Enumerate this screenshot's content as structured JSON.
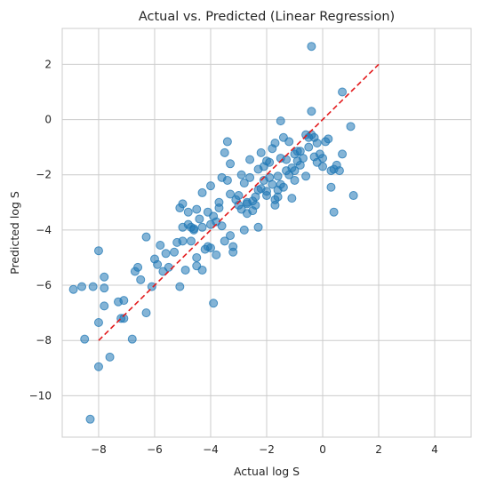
{
  "chart_data": {
    "type": "scatter",
    "title": "Actual vs. Predicted (Linear Regression)",
    "xlabel": "Actual log S",
    "ylabel": "Predicted log S",
    "xlim": [
      -9.3,
      5.3
    ],
    "ylim": [
      -11.5,
      3.3
    ],
    "xticks": [
      -8,
      -6,
      -4,
      -2,
      0,
      2,
      4
    ],
    "yticks": [
      -10,
      -8,
      -6,
      -4,
      -2,
      0,
      2
    ],
    "xtick_labels": [
      "−8",
      "−6",
      "−4",
      "−2",
      "0",
      "2",
      "4"
    ],
    "ytick_labels": [
      "−10",
      "−8",
      "−6",
      "−4",
      "−2",
      "0",
      "2"
    ],
    "grid": true,
    "point_color": "#1f77b4",
    "reference_line": {
      "x": [
        -8,
        2
      ],
      "y": [
        -8,
        2
      ],
      "color": "#e31a1c",
      "style": "dashed"
    },
    "points": [
      [
        -8.9,
        -6.15
      ],
      [
        -8.6,
        -6.05
      ],
      [
        -8.5,
        -7.95
      ],
      [
        -8.3,
        -10.85
      ],
      [
        -8.2,
        -6.05
      ],
      [
        -8.0,
        -4.75
      ],
      [
        -8.0,
        -7.35
      ],
      [
        -8.0,
        -8.95
      ],
      [
        -7.8,
        -6.75
      ],
      [
        -7.8,
        -5.7
      ],
      [
        -7.8,
        -6.1
      ],
      [
        -7.6,
        -8.6
      ],
      [
        -7.3,
        -6.6
      ],
      [
        -7.2,
        -7.2
      ],
      [
        -7.1,
        -6.55
      ],
      [
        -7.1,
        -7.2
      ],
      [
        -6.8,
        -7.95
      ],
      [
        -6.7,
        -5.5
      ],
      [
        -6.5,
        -5.8
      ],
      [
        -6.6,
        -5.35
      ],
      [
        -6.3,
        -7.0
      ],
      [
        -6.3,
        -4.25
      ],
      [
        -6.1,
        -6.05
      ],
      [
        -6.0,
        -5.05
      ],
      [
        -5.9,
        -5.25
      ],
      [
        -5.8,
        -4.55
      ],
      [
        -5.7,
        -5.5
      ],
      [
        -5.6,
        -4.85
      ],
      [
        -5.5,
        -5.35
      ],
      [
        -5.3,
        -4.8
      ],
      [
        -5.1,
        -6.05
      ],
      [
        -5.1,
        -3.2
      ],
      [
        -5.0,
        -3.05
      ],
      [
        -5.0,
        -3.9
      ],
      [
        -5.0,
        -4.4
      ],
      [
        -4.9,
        -5.45
      ],
      [
        -4.8,
        -3.8
      ],
      [
        -4.8,
        -3.35
      ],
      [
        -4.7,
        -3.9
      ],
      [
        -4.7,
        -4.4
      ],
      [
        -4.6,
        -4.0
      ],
      [
        -4.5,
        -3.25
      ],
      [
        -4.5,
        -5.3
      ],
      [
        -4.5,
        -5.0
      ],
      [
        -4.4,
        -3.6
      ],
      [
        -4.3,
        -2.65
      ],
      [
        -4.3,
        -3.9
      ],
      [
        -4.3,
        -5.45
      ],
      [
        -4.2,
        -4.7
      ],
      [
        -4.1,
        -4.6
      ],
      [
        -4.1,
        -3.35
      ],
      [
        -4.0,
        -2.4
      ],
      [
        -4.0,
        -3.8
      ],
      [
        -4.0,
        -4.65
      ],
      [
        -3.9,
        -3.5
      ],
      [
        -3.9,
        -6.65
      ],
      [
        -3.8,
        -4.9
      ],
      [
        -3.8,
        -3.7
      ],
      [
        -3.7,
        -3.0
      ],
      [
        -3.7,
        -3.2
      ],
      [
        -3.6,
        -2.1
      ],
      [
        -3.6,
        -3.85
      ],
      [
        -3.5,
        -1.2
      ],
      [
        -3.5,
        -4.4
      ],
      [
        -3.4,
        -0.8
      ],
      [
        -3.3,
        -2.7
      ],
      [
        -3.3,
        -4.2
      ],
      [
        -3.3,
        -1.6
      ],
      [
        -3.2,
        -4.8
      ],
      [
        -3.2,
        -4.6
      ],
      [
        -3.1,
        -2.9
      ],
      [
        -3.0,
        -2.75
      ],
      [
        -3.0,
        -3.1
      ],
      [
        -2.9,
        -3.25
      ],
      [
        -2.8,
        -2.3
      ],
      [
        -2.8,
        -4.0
      ],
      [
        -2.7,
        -3.4
      ],
      [
        -2.7,
        -3.05
      ],
      [
        -2.6,
        -2.1
      ],
      [
        -2.6,
        -1.45
      ],
      [
        -2.5,
        -2.95
      ],
      [
        -2.5,
        -3.3
      ],
      [
        -2.4,
        -2.8
      ],
      [
        -2.4,
        -3.1
      ],
      [
        -2.3,
        -3.9
      ],
      [
        -2.3,
        -2.55
      ],
      [
        -2.2,
        -1.2
      ],
      [
        -2.2,
        -2.5
      ],
      [
        -2.1,
        -1.7
      ],
      [
        -2.1,
        -2.2
      ],
      [
        -2.0,
        -1.5
      ],
      [
        -2.0,
        -2.75
      ],
      [
        -1.9,
        -2.1
      ],
      [
        -1.9,
        -1.55
      ],
      [
        -1.8,
        -2.35
      ],
      [
        -1.8,
        -1.05
      ],
      [
        -1.7,
        -3.1
      ],
      [
        -1.7,
        -2.9
      ],
      [
        -1.6,
        -2.55
      ],
      [
        -1.6,
        -2.05
      ],
      [
        -1.5,
        -1.4
      ],
      [
        -1.5,
        -2.35
      ],
      [
        -1.4,
        -0.65
      ],
      [
        -1.4,
        -2.45
      ],
      [
        -1.3,
        -1.45
      ],
      [
        -1.3,
        -1.85
      ],
      [
        -1.2,
        -0.8
      ],
      [
        -1.2,
        -2.0
      ],
      [
        -1.1,
        -2.85
      ],
      [
        -1.1,
        -1.75
      ],
      [
        -1.0,
        -1.25
      ],
      [
        -1.0,
        -2.2
      ],
      [
        -0.9,
        -1.5
      ],
      [
        -0.8,
        -1.15
      ],
      [
        -0.8,
        -1.65
      ],
      [
        -0.7,
        -1.4
      ],
      [
        -0.6,
        -0.55
      ],
      [
        -0.6,
        -2.05
      ],
      [
        -0.5,
        -0.65
      ],
      [
        -0.5,
        -1.0
      ],
      [
        -0.4,
        -0.55
      ],
      [
        -0.4,
        0.3
      ],
      [
        -0.3,
        -0.65
      ],
      [
        -0.3,
        -1.35
      ],
      [
        -0.2,
        -1.55
      ],
      [
        -0.2,
        -0.85
      ],
      [
        -0.1,
        -1.25
      ],
      [
        0.0,
        -1.7
      ],
      [
        0.0,
        -1.4
      ],
      [
        0.1,
        -0.8
      ],
      [
        0.2,
        -0.7
      ],
      [
        0.3,
        -2.45
      ],
      [
        0.3,
        -1.85
      ],
      [
        0.4,
        -1.8
      ],
      [
        0.4,
        -3.35
      ],
      [
        0.5,
        -1.65
      ],
      [
        0.6,
        -1.85
      ],
      [
        0.7,
        1.0
      ],
      [
        0.7,
        -1.25
      ],
      [
        1.0,
        -0.25
      ],
      [
        1.1,
        -2.75
      ],
      [
        -0.4,
        2.65
      ],
      [
        -1.5,
        -0.05
      ],
      [
        -2.7,
        -3.0
      ],
      [
        -1.6,
        -2.8
      ],
      [
        -2.0,
        -2.6
      ],
      [
        -3.4,
        -2.2
      ],
      [
        -2.3,
        -1.8
      ],
      [
        -1.0,
        -1.85
      ],
      [
        -4.6,
        -3.95
      ],
      [
        -5.2,
        -4.45
      ],
      [
        -2.9,
        -2.0
      ],
      [
        -0.9,
        -1.15
      ],
      [
        -1.7,
        -0.85
      ]
    ]
  }
}
